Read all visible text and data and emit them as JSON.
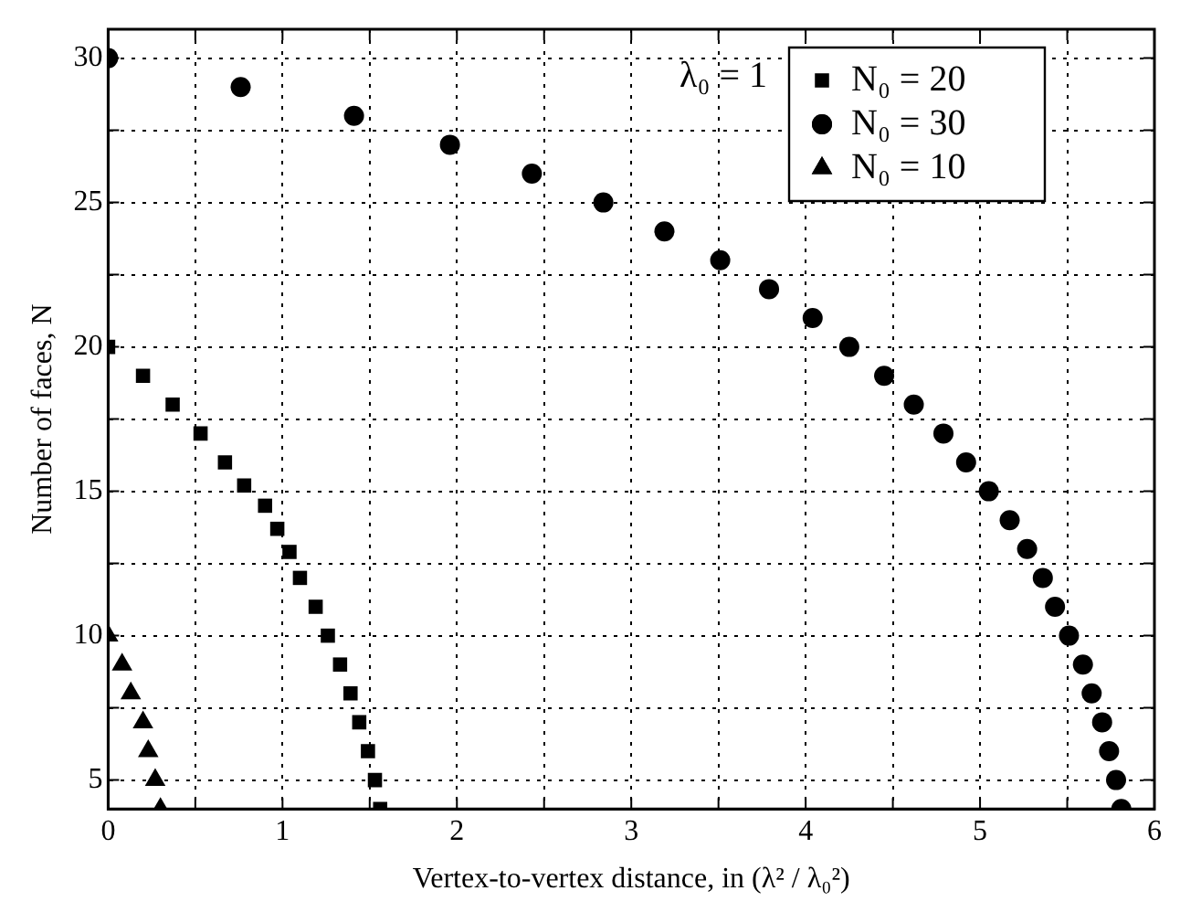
{
  "chart_data": {
    "type": "scatter",
    "xlabel": "Vertex-to-vertex distance, in (λ² / λ₀²)",
    "ylabel": "Number of faces, N",
    "annotations": [
      "λ₀ = 1"
    ],
    "xlim": [
      0,
      6
    ],
    "xticks": [
      0,
      {
        "value": 0.5,
        "label": null
      },
      1,
      {
        "value": 1.5,
        "label": null
      },
      2,
      {
        "value": 2.5,
        "label": null
      },
      3,
      {
        "value": 3.5,
        "label": null
      },
      4,
      {
        "value": 4.5,
        "label": null
      },
      5,
      {
        "value": 5.5,
        "label": null
      },
      6
    ],
    "ylim": [
      4,
      31
    ],
    "yticks": [
      5,
      {
        "value": 7.5,
        "label": null
      },
      10,
      {
        "value": 12.5,
        "label": null
      },
      15,
      {
        "value": 17.5,
        "label": null
      },
      20,
      {
        "value": 22.5,
        "label": null
      },
      25,
      {
        "value": 27.5,
        "label": null
      },
      30
    ],
    "grid": true,
    "legend": "top right",
    "series": [
      {
        "name": "N₀ = 20",
        "color": "#000000",
        "marker": "square",
        "x": [
          0,
          0.2,
          0.37,
          0.53,
          0.67,
          0.78,
          0.9,
          0.97,
          1.04,
          1.1,
          1.19,
          1.26,
          1.33,
          1.39,
          1.44,
          1.49,
          1.53,
          1.56
        ],
        "values": [
          20,
          19,
          18,
          17,
          16,
          15.2,
          14.5,
          13.7,
          12.9,
          12,
          11,
          10,
          9,
          8,
          7,
          6,
          5,
          4
        ]
      },
      {
        "name": "N₀ = 30",
        "color": "#000000",
        "marker": "circle",
        "x": [
          0,
          0.76,
          1.41,
          1.96,
          2.43,
          2.84,
          3.19,
          3.51,
          3.79,
          4.04,
          4.25,
          4.45,
          4.62,
          4.79,
          4.92,
          5.05,
          5.17,
          5.27,
          5.36,
          5.43,
          5.51,
          5.59,
          5.64,
          5.7,
          5.74,
          5.78,
          5.81
        ],
        "values": [
          30,
          29,
          28,
          27,
          26,
          25,
          24,
          23,
          22,
          21,
          20,
          19,
          18,
          17,
          16,
          15,
          14,
          13,
          12,
          11,
          10,
          9,
          8,
          7,
          6,
          5,
          4
        ]
      },
      {
        "name": "N₀ = 10",
        "color": "#000000",
        "marker": "triangle",
        "x": [
          0,
          0.08,
          0.13,
          0.2,
          0.23,
          0.27,
          0.3
        ],
        "values": [
          10,
          9,
          8,
          7,
          6,
          5,
          4
        ]
      }
    ]
  }
}
